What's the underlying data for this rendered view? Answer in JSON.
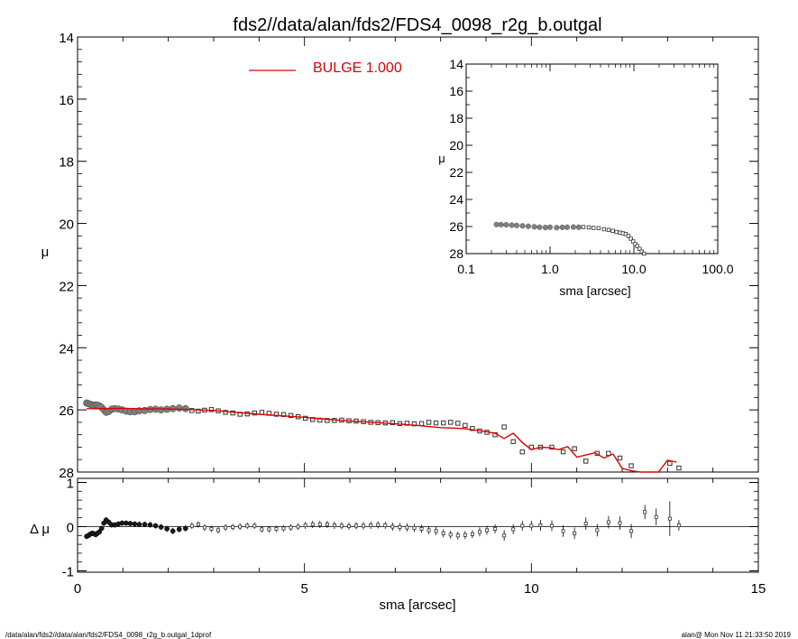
{
  "title": "fds2//data/alan/fds2/FDS4_0098_r2g_b.outgal",
  "footer_left": "/data/alan/fds2//data/alan/fds2/FDS4_0098_r2g_b.outgal_1dprof",
  "footer_right": "alan@  Mon Nov 11 21:33:50 2019",
  "chart_data": [
    {
      "type": "scatter",
      "panel": "main profile",
      "xlabel": "sma [arcsec]",
      "ylabel": "μ",
      "xlim": [
        0,
        15
      ],
      "ylim": [
        28,
        14
      ],
      "y_reversed": true,
      "xticks": [
        "0",
        "5",
        "10",
        "15"
      ],
      "yticks": [
        "14",
        "16",
        "18",
        "20",
        "22",
        "24",
        "26",
        "28"
      ],
      "legend": {
        "label": "BULGE  1.000",
        "position": "top-center"
      },
      "series": [
        {
          "role": "observed profile (symbols)",
          "x": [
            0.2,
            0.24,
            0.28,
            0.32,
            0.36,
            0.4,
            0.44,
            0.48,
            0.53,
            0.58,
            0.63,
            0.69,
            0.75,
            0.82,
            0.9,
            0.98,
            1.07,
            1.16,
            1.26,
            1.36,
            1.48,
            1.6,
            1.72,
            1.84,
            1.97,
            2.1,
            2.24,
            2.38,
            2.52,
            2.66,
            2.8,
            2.95,
            3.1,
            3.26,
            3.42,
            3.58,
            3.74,
            3.9,
            4.06,
            4.22,
            4.38,
            4.54,
            4.7,
            4.86,
            5.02,
            5.18,
            5.34,
            5.5,
            5.66,
            5.82,
            5.98,
            6.14,
            6.3,
            6.46,
            6.62,
            6.78,
            6.94,
            7.1,
            7.26,
            7.42,
            7.58,
            7.74,
            7.9,
            8.06,
            8.22,
            8.38,
            8.54,
            8.7,
            8.86,
            9.02,
            9.2,
            9.4,
            9.6,
            9.8,
            10.0,
            10.2,
            10.45,
            10.7,
            10.95,
            11.2,
            11.45,
            11.7,
            11.95,
            12.2,
            12.5,
            12.75,
            13.05,
            13.25
          ],
          "y": [
            25.78,
            25.8,
            25.82,
            25.84,
            25.86,
            25.84,
            25.85,
            25.87,
            25.92,
            26.0,
            26.08,
            26.05,
            25.98,
            25.96,
            25.97,
            26.0,
            26.04,
            26.06,
            26.06,
            26.03,
            26.02,
            25.99,
            25.98,
            26.0,
            25.98,
            25.96,
            25.94,
            25.96,
            26.02,
            26.04,
            26.01,
            25.99,
            26.03,
            26.08,
            26.1,
            26.14,
            26.13,
            26.1,
            26.08,
            26.11,
            26.14,
            26.15,
            26.18,
            26.22,
            26.27,
            26.31,
            26.33,
            26.34,
            26.34,
            26.33,
            26.35,
            26.36,
            26.38,
            26.4,
            26.41,
            26.42,
            26.41,
            26.44,
            26.43,
            26.45,
            26.44,
            26.4,
            26.42,
            26.42,
            26.4,
            26.43,
            26.5,
            26.6,
            26.68,
            26.72,
            26.8,
            26.55,
            27.02,
            27.35,
            27.2,
            27.2,
            27.2,
            27.35,
            27.25,
            27.65,
            27.4,
            27.4,
            27.55,
            27.8,
            28.3,
            28.6,
            27.72,
            27.87
          ]
        },
        {
          "name": "BULGE  1.000",
          "role": "model (red line)",
          "color": "#e00000",
          "x": [
            0.2,
            0.6,
            1.0,
            1.5,
            2.0,
            2.5,
            3.0,
            3.5,
            4.0,
            4.5,
            5.0,
            5.5,
            6.0,
            6.5,
            7.0,
            7.5,
            8.0,
            8.5,
            9.0,
            9.2,
            9.4,
            9.6,
            9.8,
            10.0,
            10.2,
            10.4,
            10.6,
            10.8,
            11.0,
            11.2,
            11.4,
            11.6,
            11.8,
            12.0,
            12.2,
            12.4,
            12.6,
            12.8,
            13.0,
            13.2
          ],
          "y": [
            25.96,
            25.96,
            25.95,
            25.97,
            25.97,
            25.99,
            26.02,
            26.08,
            26.14,
            26.19,
            26.24,
            26.3,
            26.36,
            26.4,
            26.45,
            26.5,
            26.57,
            26.6,
            26.7,
            26.75,
            26.92,
            26.75,
            27.05,
            27.28,
            27.2,
            27.22,
            27.28,
            27.18,
            27.52,
            27.45,
            27.38,
            27.55,
            27.42,
            27.88,
            27.96,
            28.02,
            28.2,
            28.3,
            27.62,
            27.68
          ]
        }
      ]
    },
    {
      "type": "scatter",
      "panel": "residuals",
      "xlabel": "sma [arcsec]",
      "ylabel": "Δ μ",
      "xlim": [
        0,
        15
      ],
      "ylim": [
        -1,
        1
      ],
      "xticks": [
        "0",
        "5",
        "10",
        "15"
      ],
      "yticks": [
        "1",
        "0",
        "-1"
      ],
      "series": [
        {
          "role": "residuals with error bars",
          "x": [
            0.2,
            0.24,
            0.28,
            0.32,
            0.36,
            0.4,
            0.44,
            0.48,
            0.53,
            0.58,
            0.63,
            0.69,
            0.75,
            0.82,
            0.9,
            0.98,
            1.07,
            1.16,
            1.26,
            1.36,
            1.48,
            1.6,
            1.72,
            1.84,
            1.97,
            2.1,
            2.24,
            2.38,
            2.52,
            2.66,
            2.8,
            2.95,
            3.1,
            3.26,
            3.42,
            3.58,
            3.74,
            3.9,
            4.06,
            4.22,
            4.38,
            4.54,
            4.7,
            4.86,
            5.02,
            5.18,
            5.34,
            5.5,
            5.66,
            5.82,
            5.98,
            6.14,
            6.3,
            6.46,
            6.62,
            6.78,
            6.94,
            7.1,
            7.26,
            7.42,
            7.58,
            7.74,
            7.9,
            8.06,
            8.22,
            8.38,
            8.54,
            8.7,
            8.86,
            9.02,
            9.2,
            9.4,
            9.6,
            9.8,
            10.0,
            10.2,
            10.45,
            10.7,
            10.95,
            11.2,
            11.45,
            11.7,
            11.95,
            12.2,
            12.5,
            12.75,
            13.05,
            13.25
          ],
          "y": [
            -0.22,
            -0.2,
            -0.17,
            -0.15,
            -0.16,
            -0.18,
            -0.15,
            -0.12,
            -0.04,
            0.08,
            0.15,
            0.1,
            0.04,
            0.04,
            0.06,
            0.08,
            0.08,
            0.07,
            0.06,
            0.05,
            0.05,
            0.04,
            0.02,
            -0.01,
            -0.05,
            -0.1,
            -0.06,
            -0.04,
            0.02,
            0.05,
            -0.02,
            -0.05,
            -0.08,
            -0.02,
            -0.01,
            0.0,
            0.02,
            0.02,
            -0.06,
            -0.06,
            -0.05,
            -0.04,
            -0.02,
            0.0,
            0.03,
            0.05,
            0.05,
            0.05,
            0.03,
            0.02,
            0.01,
            0.02,
            0.02,
            0.03,
            0.04,
            0.03,
            0.0,
            -0.01,
            -0.02,
            -0.03,
            -0.05,
            -0.08,
            -0.1,
            -0.15,
            -0.18,
            -0.2,
            -0.19,
            -0.17,
            -0.12,
            -0.08,
            -0.05,
            -0.2,
            -0.06,
            0.02,
            0.02,
            0.03,
            0.02,
            -0.1,
            -0.15,
            0.07,
            -0.08,
            0.1,
            0.08,
            -0.1,
            0.33,
            0.22,
            0.18,
            0.03
          ],
          "err": [
            0.02,
            0.02,
            0.02,
            0.02,
            0.02,
            0.02,
            0.02,
            0.02,
            0.02,
            0.02,
            0.02,
            0.02,
            0.02,
            0.02,
            0.02,
            0.02,
            0.02,
            0.02,
            0.02,
            0.02,
            0.02,
            0.02,
            0.02,
            0.02,
            0.03,
            0.03,
            0.03,
            0.03,
            0.03,
            0.03,
            0.03,
            0.03,
            0.03,
            0.03,
            0.03,
            0.03,
            0.03,
            0.03,
            0.03,
            0.03,
            0.03,
            0.03,
            0.03,
            0.03,
            0.04,
            0.04,
            0.04,
            0.04,
            0.04,
            0.04,
            0.04,
            0.04,
            0.04,
            0.04,
            0.04,
            0.04,
            0.05,
            0.05,
            0.05,
            0.05,
            0.05,
            0.05,
            0.05,
            0.05,
            0.05,
            0.05,
            0.05,
            0.05,
            0.06,
            0.06,
            0.06,
            0.08,
            0.07,
            0.07,
            0.07,
            0.08,
            0.08,
            0.09,
            0.09,
            0.1,
            0.1,
            0.1,
            0.11,
            0.12,
            0.12,
            0.15,
            0.35,
            0.08
          ]
        }
      ]
    },
    {
      "type": "scatter",
      "panel": "inset (log scale)",
      "xlabel": "sma [arcsec]",
      "ylabel": "μ",
      "xscale": "log",
      "xlim": [
        0.1,
        100
      ],
      "ylim": [
        28,
        14
      ],
      "y_reversed": true,
      "xticks": [
        "0.1",
        "1.0",
        "10.0",
        "100.0"
      ],
      "yticks": [
        "14",
        "16",
        "18",
        "20",
        "22",
        "24",
        "26",
        "28"
      ],
      "series": [
        {
          "role": "observed profile (symbols)",
          "x": [
            0.23,
            0.26,
            0.3,
            0.35,
            0.4,
            0.47,
            0.55,
            0.65,
            0.75,
            0.88,
            1.0,
            1.2,
            1.4,
            1.6,
            1.9,
            2.2,
            2.5,
            2.9,
            3.3,
            3.8,
            4.4,
            5.0,
            5.6,
            6.2,
            6.8,
            7.4,
            8.0,
            8.6,
            9.2,
            9.8,
            10.4,
            11.0,
            11.7,
            12.4,
            13.2
          ],
          "y": [
            25.85,
            25.86,
            25.87,
            25.9,
            25.92,
            25.95,
            25.98,
            26.02,
            26.05,
            26.07,
            26.05,
            26.08,
            26.06,
            26.05,
            26.04,
            26.05,
            26.04,
            26.06,
            26.1,
            26.12,
            26.2,
            26.25,
            26.32,
            26.4,
            26.45,
            26.5,
            26.55,
            26.7,
            26.9,
            27.1,
            27.3,
            27.45,
            27.65,
            27.85,
            28.0
          ]
        }
      ]
    }
  ]
}
